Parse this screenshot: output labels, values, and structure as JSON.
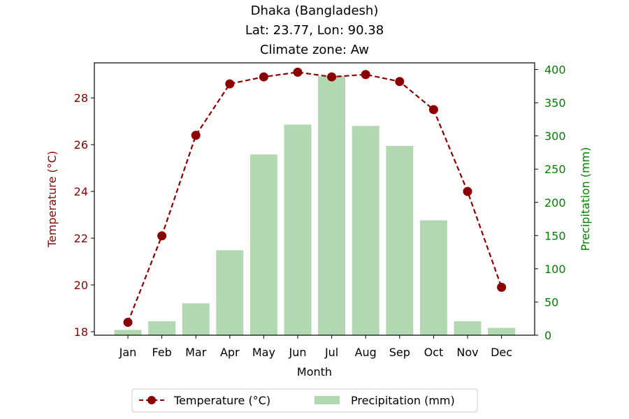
{
  "chart_data": {
    "type": "bar+line",
    "title": [
      "Dhaka (Bangladesh)",
      "Lat: 23.77, Lon: 90.38",
      "Climate zone: Aw"
    ],
    "xlabel": "Month",
    "ylabel_left": "Temperature (°C)",
    "ylabel_right": "Precipitation (mm)",
    "categories": [
      "Jan",
      "Feb",
      "Mar",
      "Apr",
      "May",
      "Jun",
      "Jul",
      "Aug",
      "Sep",
      "Oct",
      "Nov",
      "Dec"
    ],
    "series": [
      {
        "name": "Temperature (°C)",
        "axis": "left",
        "kind": "line",
        "values": [
          18.4,
          22.1,
          26.4,
          28.6,
          28.9,
          29.1,
          28.9,
          29.0,
          28.7,
          27.5,
          24.0,
          19.9
        ]
      },
      {
        "name": "Precipitation (mm)",
        "axis": "right",
        "kind": "bar",
        "values": [
          8,
          21,
          48,
          128,
          272,
          317,
          390,
          315,
          285,
          173,
          21,
          11
        ]
      }
    ],
    "ylim_left": [
      17.85,
      29.5
    ],
    "ylim_right": [
      0,
      410
    ],
    "yticks_left": [
      18,
      20,
      22,
      24,
      26,
      28
    ],
    "yticks_right": [
      0,
      50,
      100,
      150,
      200,
      250,
      300,
      350,
      400
    ],
    "legend_position": "bottom-center",
    "grid": false,
    "colors": {
      "temperature": "#8b0000",
      "precipitation": "#b2d8b2",
      "right_axis": "#008000",
      "axis": "#000000"
    }
  }
}
